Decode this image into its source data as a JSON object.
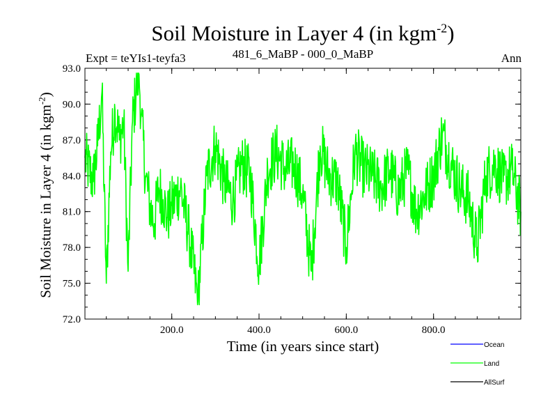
{
  "chart_data": {
    "type": "line",
    "title": "Soil Moisture in Layer 4 (in kgm",
    "title_superscript": "-2",
    "title_suffix": ")",
    "experiment": "Expt = teYIs1-teyfa3",
    "period": "481_6_MaBP - 000_0_MaBP",
    "season": "Ann",
    "xlabel": "Time (in years since start)",
    "ylabel": "Soil Moisture in Layer 4 (in kgm",
    "ylabel_superscript": "-2",
    "ylabel_suffix": ")",
    "xlim": [
      1,
      1000
    ],
    "ylim": [
      72.0,
      93.0
    ],
    "x_ticks": [
      200.0,
      400.0,
      600.0,
      800.0
    ],
    "x_tick_labels": [
      "200.0",
      "400.0",
      "600.0",
      "800.0"
    ],
    "y_ticks": [
      72.0,
      75.0,
      78.0,
      81.0,
      84.0,
      87.0,
      90.0,
      93.0
    ],
    "y_tick_labels": [
      "72.0",
      "75.0",
      "78.0",
      "81.0",
      "84.0",
      "87.0",
      "90.0",
      "93.0"
    ],
    "series": [
      {
        "name": "Land",
        "color": "#00ff00",
        "x": [
          1,
          20,
          30,
          40,
          50,
          60,
          70,
          80,
          90,
          100,
          110,
          120,
          125,
          130,
          140,
          150,
          160,
          170,
          180,
          190,
          200,
          220,
          240,
          260,
          280,
          300,
          320,
          340,
          360,
          380,
          400,
          420,
          440,
          460,
          480,
          500,
          520,
          540,
          560,
          580,
          600,
          620,
          640,
          660,
          680,
          700,
          720,
          740,
          760,
          780,
          800,
          820,
          840,
          860,
          880,
          900,
          920,
          940,
          960,
          980,
          1000
        ],
        "y": [
          85.5,
          83.5,
          86.5,
          91.0,
          75.0,
          86.0,
          89.5,
          87.0,
          88.5,
          76.0,
          88.5,
          91.5,
          92.5,
          89.0,
          84.0,
          81.5,
          80.0,
          83.0,
          82.0,
          80.5,
          81.5,
          83.0,
          79.0,
          73.5,
          84.0,
          86.5,
          83.5,
          82.0,
          85.0,
          84.0,
          76.5,
          84.5,
          86.0,
          84.5,
          85.0,
          82.5,
          76.0,
          86.5,
          84.0,
          83.5,
          78.0,
          86.0,
          84.5,
          84.0,
          83.0,
          84.5,
          82.5,
          84.5,
          81.0,
          82.5,
          84.0,
          87.5,
          85.0,
          83.0,
          82.0,
          78.0,
          84.0,
          85.0,
          83.5,
          84.5,
          81.0
        ]
      }
    ],
    "legend": [
      {
        "label": "Ocean",
        "color": "#0000ff"
      },
      {
        "label": "Land",
        "color": "#00ff00"
      },
      {
        "label": "AllSurf",
        "color": "#000000"
      }
    ]
  }
}
